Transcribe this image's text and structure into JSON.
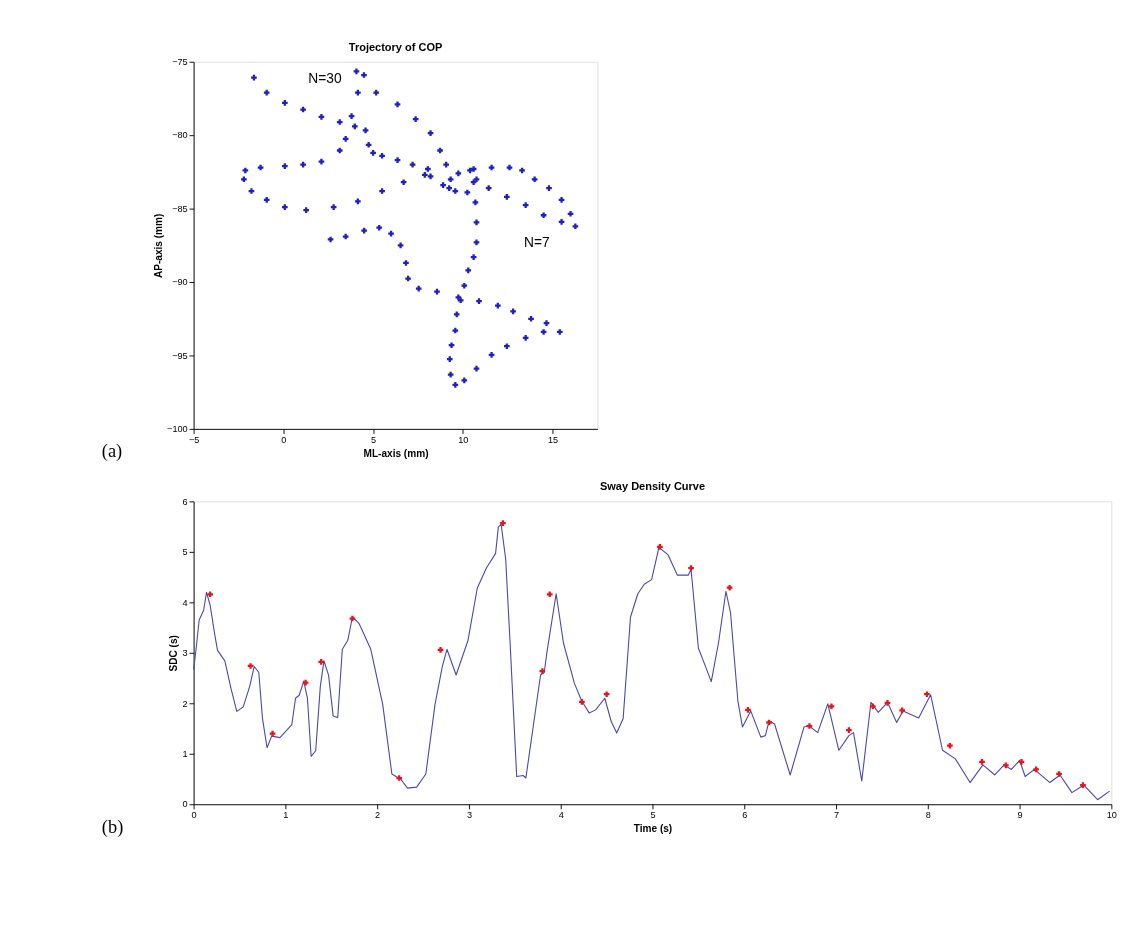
{
  "chart_data": [
    {
      "type": "scatter",
      "title": "Trojectory of COP",
      "xlabel": "ML-axis (mm)",
      "ylabel": "AP-axis (mm)",
      "xlim": [
        -5,
        17.5
      ],
      "ylim": [
        -100,
        -75
      ],
      "xticks": [
        -5,
        0,
        5,
        10,
        15
      ],
      "yticks": [
        -100,
        -95,
        -90,
        -85,
        -80,
        -75
      ],
      "marker": "cross",
      "annotations": [
        "(a)",
        "N=30",
        "N=7"
      ],
      "series": [
        {
          "color": "#1f1fc4",
          "x": [
            -1.64,
            -0.93,
            0.08,
            1.1,
            2.12,
            3.14,
            3.98,
            4.58,
            4.75,
            5.0,
            5.5,
            6.36,
            7.2,
            8.05,
            8.2,
            8.9,
            9.24,
            4.07,
            4.49,
            4.15,
            3.8,
            3.47,
            3.14,
            2.12,
            1.1,
            0.08,
            -1.27,
            -2.12,
            -2.2,
            -1.78,
            -0.93,
            0.08,
            1.27,
            2.8,
            4.15,
            5.5,
            6.7,
            7.88,
            5.17,
            6.36,
            7.37,
            8.2,
            8.73,
            9.07,
            9.32,
            9.58,
            10.25,
            10.6,
            10.4,
            9.75,
            10.6,
            11.6,
            12.6,
            13.3,
            14.0,
            14.8,
            15.5,
            16.0,
            16.27,
            15.5,
            14.5,
            13.5,
            12.45,
            11.44,
            10.76,
            10.7,
            10.76,
            10.76,
            10.6,
            10.3,
            10.08,
            9.88,
            9.66,
            9.58,
            9.37,
            9.27,
            9.32,
            9.58,
            10.08,
            10.76,
            11.6,
            12.45,
            13.5,
            14.5,
            15.4,
            14.66,
            13.8,
            12.8,
            11.95,
            10.9,
            9.75,
            8.56,
            7.54,
            6.95,
            6.83,
            6.53,
            6.0,
            5.34,
            4.5,
            3.47,
            2.63
          ],
          "values": [
            -76.08,
            -77.1,
            -77.8,
            -78.25,
            -78.75,
            -79.1,
            -79.4,
            -79.67,
            -80.65,
            -81.2,
            -81.4,
            -81.7,
            -82.0,
            -82.3,
            -82.8,
            -83.4,
            -83.6,
            -75.65,
            -75.9,
            -77.1,
            -78.7,
            -80.25,
            -81.04,
            -81.8,
            -82.0,
            -82.1,
            -82.2,
            -82.4,
            -83.0,
            -83.8,
            -84.4,
            -84.9,
            -85.1,
            -84.9,
            -84.5,
            -83.8,
            -83.2,
            -82.7,
            -77.1,
            -77.9,
            -78.9,
            -79.86,
            -81.04,
            -82.0,
            -83.0,
            -83.8,
            -83.9,
            -83.2,
            -82.4,
            -82.6,
            -82.3,
            -82.2,
            -82.2,
            -82.4,
            -83.0,
            -83.6,
            -84.4,
            -85.35,
            -86.2,
            -85.9,
            -85.45,
            -84.76,
            -84.2,
            -83.6,
            -83.0,
            -84.57,
            -85.94,
            -87.3,
            -88.3,
            -89.2,
            -90.25,
            -91.24,
            -92.2,
            -93.3,
            -94.3,
            -95.25,
            -96.3,
            -97.0,
            -96.7,
            -95.9,
            -94.96,
            -94.37,
            -93.8,
            -93.4,
            -93.4,
            -92.8,
            -92.5,
            -92.0,
            -91.6,
            -91.3,
            -91.04,
            -90.65,
            -90.45,
            -89.76,
            -88.7,
            -87.5,
            -86.7,
            -86.3,
            -86.5,
            -86.9,
            -87.1
          ]
        }
      ]
    },
    {
      "type": "line",
      "title": "Sway Density Curve",
      "xlabel": "Time (s)",
      "ylabel": "SDC (s)",
      "xlim": [
        0,
        10
      ],
      "ylim": [
        0,
        6
      ],
      "xticks": [
        0,
        1,
        2,
        3,
        4,
        5,
        6,
        7,
        8,
        9,
        10
      ],
      "yticks": [
        0,
        1,
        2,
        3,
        4,
        5,
        6
      ],
      "annotations": [
        "(b)"
      ],
      "series": [
        {
          "type": "line",
          "color": "#4a4aa8",
          "x": [
            0,
            0.03,
            0.06,
            0.11,
            0.14,
            0.18,
            0.23,
            0.26,
            0.34,
            0.41,
            0.47,
            0.54,
            0.61,
            0.66,
            0.71,
            0.75,
            0.8,
            0.85,
            0.94,
            1.07,
            1.11,
            1.15,
            1.2,
            1.24,
            1.28,
            1.33,
            1.38,
            1.42,
            1.47,
            1.52,
            1.57,
            1.62,
            1.68,
            1.73,
            1.8,
            1.93,
            2.06,
            2.16,
            2.26,
            2.33,
            2.43,
            2.53,
            2.63,
            2.71,
            2.76,
            2.86,
            2.99,
            3.09,
            3.19,
            3.29,
            3.32,
            3.35,
            3.4,
            3.45,
            3.52,
            3.59,
            3.62,
            3.78,
            3.82,
            3.85,
            3.95,
            4.03,
            4.15,
            4.23,
            4.31,
            4.38,
            4.48,
            4.55,
            4.61,
            4.68,
            4.76,
            4.84,
            4.91,
            4.99,
            5.07,
            5.17,
            5.27,
            5.39,
            5.42,
            5.5,
            5.55,
            5.64,
            5.72,
            5.8,
            5.85,
            5.93,
            5.98,
            6.07,
            6.18,
            6.23,
            6.27,
            6.33,
            6.5,
            6.65,
            6.7,
            6.8,
            6.91,
            7.03,
            7.14,
            7.19,
            7.28,
            7.38,
            7.46,
            7.56,
            7.66,
            7.73,
            7.9,
            8.03,
            8.16,
            8.3,
            8.46,
            8.6,
            8.73,
            8.83,
            8.91,
            9.0,
            9.06,
            9.16,
            9.33,
            9.44,
            9.57,
            9.7,
            9.85,
            9.98
          ],
          "values": [
            2.67,
            3.13,
            3.65,
            3.85,
            4.2,
            3.94,
            3.36,
            3.05,
            2.84,
            2.27,
            1.84,
            1.93,
            2.33,
            2.73,
            2.61,
            1.7,
            1.12,
            1.35,
            1.32,
            1.58,
            2.1,
            2.16,
            2.44,
            2.1,
            0.95,
            1.06,
            2.33,
            2.84,
            2.56,
            1.75,
            1.72,
            3.07,
            3.25,
            3.71,
            3.59,
            3.07,
            1.98,
            0.6,
            0.49,
            0.32,
            0.34,
            0.6,
            1.98,
            2.73,
            3.07,
            2.56,
            3.25,
            4.28,
            4.68,
            4.97,
            5.49,
            5.55,
            4.86,
            3.13,
            0.55,
            0.57,
            0.52,
            2.56,
            2.61,
            3.02,
            4.17,
            3.19,
            2.39,
            2.04,
            1.81,
            1.87,
            2.1,
            1.64,
            1.41,
            1.7,
            3.71,
            4.17,
            4.36,
            4.45,
            5.09,
            4.94,
            4.54,
            4.54,
            4.65,
            3.09,
            2.86,
            2.43,
            3.21,
            4.22,
            3.79,
            2.05,
            1.53,
            1.85,
            1.33,
            1.36,
            1.65,
            1.59,
            0.58,
            1.53,
            1.56,
            1.42,
            1.99,
            1.07,
            1.36,
            1.42,
            0.46,
            2.02,
            1.82,
            2.02,
            1.62,
            1.85,
            1.71,
            2.17,
            1.07,
            0.9,
            0.43,
            0.78,
            0.58,
            0.78,
            0.69,
            0.87,
            0.55,
            0.69,
            0.43,
            0.58,
            0.23,
            0.38,
            0.09,
            0.26
          ]
        },
        {
          "type": "scatter",
          "color": "#e8141c",
          "marker": "cross",
          "x": [
            0.18,
            0.62,
            0.86,
            1.22,
            1.39,
            1.73,
            2.24,
            2.69,
            3.37,
            3.8,
            3.88,
            4.23,
            4.5,
            5.08,
            5.42,
            5.84,
            6.04,
            6.27,
            6.71,
            6.95,
            7.14,
            7.4,
            7.56,
            7.72,
            7.99,
            8.24,
            8.59,
            8.85,
            9.02,
            9.18,
            9.43,
            9.69
          ],
          "values": [
            4.16,
            2.74,
            1.4,
            2.41,
            2.82,
            3.68,
            0.52,
            3.06,
            5.57,
            2.64,
            4.16,
            2.03,
            2.18,
            5.1,
            4.68,
            4.29,
            1.87,
            1.62,
            1.55,
            1.94,
            1.47,
            1.94,
            2.01,
            1.86,
            2.18,
            1.16,
            0.84,
            0.77,
            0.84,
            0.69,
            0.6,
            0.38
          ]
        }
      ]
    }
  ]
}
